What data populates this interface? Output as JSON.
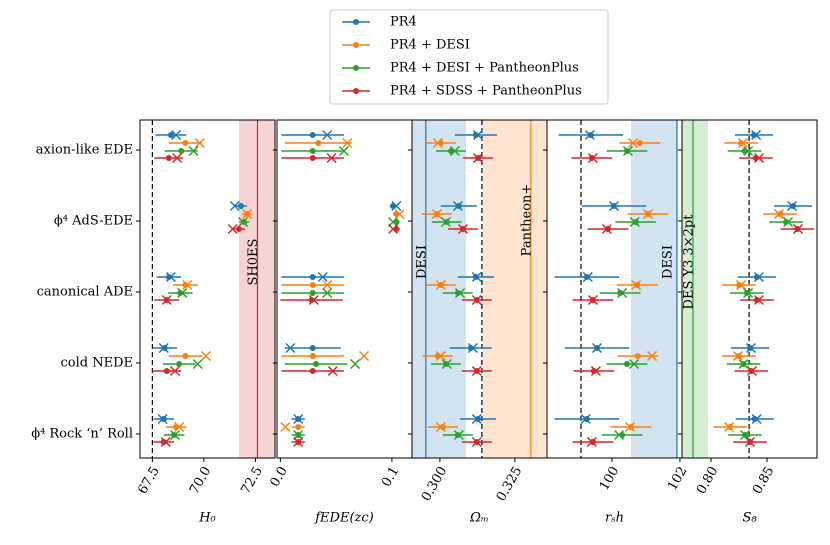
{
  "chart_data": [
    {
      "type": "errorbar",
      "xlabel": "H₀",
      "categories": [
        "axion-like EDE",
        "ϕ⁴ AdS-EDE",
        "canonical ADE",
        "cold NEDE",
        "ϕ⁴ Rock ‘n’ Roll"
      ],
      "xlim": [
        66.9,
        73.45
      ],
      "xticks": [
        67.5,
        {
          "value": 70,
          "label": "70.0"
        },
        72.5
      ],
      "reference_line": 67.5,
      "bands": [
        {
          "label": "SH0ES",
          "range": [
            71.7,
            73.5
          ],
          "line": 72.6,
          "color": "#d62728"
        }
      ],
      "series": [
        {
          "name": "PR4",
          "color": "#1f77b4",
          "values": [
            68.4,
            71.8,
            68.3,
            68.1,
            68.05
          ],
          "errors": [
            0.75,
            0.3,
            0.6,
            0.6,
            0.5
          ],
          "bestfit": [
            68.65,
            71.5,
            68.4,
            68.05,
            68.0
          ]
        },
        {
          "name": "PR4 + DESI",
          "color": "#ff7f0e",
          "values": [
            69.1,
            72.1,
            69.1,
            69.1,
            68.65
          ],
          "errors": [
            0.8,
            0.25,
            0.6,
            0.8,
            0.5
          ],
          "bestfit": [
            69.8,
            72.1,
            69.2,
            70.1,
            68.8
          ]
        },
        {
          "name": "PR4 + DESI + PantheonPlus",
          "color": "#2ca02c",
          "values": [
            68.9,
            71.95,
            68.85,
            68.8,
            68.55
          ],
          "errors": [
            0.8,
            0.25,
            0.6,
            0.8,
            0.5
          ],
          "bestfit": [
            69.5,
            71.9,
            68.95,
            69.7,
            68.6
          ]
        },
        {
          "name": "PR4 + SDSS + PantheonPlus",
          "color": "#d62728",
          "values": [
            68.3,
            71.7,
            68.2,
            68.2,
            68.05
          ],
          "errors": [
            0.7,
            0.3,
            0.6,
            0.7,
            0.5
          ],
          "bestfit": [
            68.7,
            71.4,
            68.2,
            68.6,
            68.15
          ]
        }
      ]
    },
    {
      "type": "errorbar",
      "xlabel": "fEDE(zc)",
      "xlim": [
        -0.003,
        0.118
      ],
      "xticks": [
        {
          "value": 0,
          "label": "0.0"
        },
        0.1
      ],
      "series": [
        {
          "values": [
            0.029,
            0.101,
            0.029,
            0.029,
            0.016
          ],
          "errors": [
            0.028,
            0.003,
            0.028,
            0.025,
            0.006
          ],
          "bestfit": [
            0.042,
            0.104,
            0.038,
            0.009,
            0.016
          ]
        },
        {
          "values": [
            0.034,
            0.104,
            0.029,
            0.029,
            0.016
          ],
          "errors": [
            0.03,
            0.003,
            0.028,
            0.028,
            0.006
          ],
          "bestfit": [
            0.06,
            0.107,
            0.042,
            0.075,
            0.0045
          ]
        },
        {
          "values": [
            0.029,
            0.104,
            0.029,
            0.032,
            0.016
          ],
          "errors": [
            0.028,
            0.003,
            0.028,
            0.028,
            0.006
          ],
          "bestfit": [
            0.057,
            0.101,
            0.042,
            0.067,
            0.016
          ]
        },
        {
          "values": [
            0.029,
            0.104,
            0.028,
            0.029,
            0.016
          ],
          "errors": [
            0.028,
            0.003,
            0.028,
            0.028,
            0.006
          ],
          "bestfit": [
            0.046,
            0.101,
            0.03,
            0.047,
            0.016
          ]
        }
      ]
    },
    {
      "type": "errorbar",
      "xlabel": "Ωₘ",
      "xlim": [
        0.2907,
        0.3357
      ],
      "xticks": [
        {
          "value": 0.3,
          "label": "0.300"
        },
        0.325
      ],
      "reference_line": 0.314,
      "bands": [
        {
          "label": "DESI",
          "range": [
            0.28,
            0.3087
          ],
          "line": 0.2953,
          "color": "#1f77b4"
        },
        {
          "label": "Pantheon+",
          "range": [
            0.3143,
            0.346
          ],
          "line": 0.3303,
          "color": "#ff7f0e"
        }
      ],
      "series": [
        {
          "values": [
            0.312,
            0.3063,
            0.312,
            0.3103,
            0.3127
          ],
          "errors": [
            0.007,
            0.006,
            0.006,
            0.007,
            0.006
          ],
          "bestfit": [
            0.3127,
            0.306,
            0.3123,
            0.311,
            0.3123
          ]
        },
        {
          "values": [
            0.3003,
            0.299,
            0.3003,
            0.2993,
            0.301
          ],
          "errors": [
            0.005,
            0.005,
            0.005,
            0.005,
            0.005
          ],
          "bestfit": [
            0.2993,
            0.299,
            0.3003,
            0.3003,
            0.3003
          ]
        },
        {
          "values": [
            0.3037,
            0.3023,
            0.306,
            0.302,
            0.306
          ],
          "errors": [
            0.005,
            0.005,
            0.005,
            0.005,
            0.005
          ],
          "bestfit": [
            0.305,
            0.302,
            0.3067,
            0.3023,
            0.3063
          ]
        },
        {
          "values": [
            0.3127,
            0.3077,
            0.3123,
            0.3123,
            0.3123
          ],
          "errors": [
            0.005,
            0.005,
            0.005,
            0.005,
            0.005
          ],
          "bestfit": [
            0.3127,
            0.3077,
            0.3123,
            0.3123,
            0.3123
          ]
        }
      ]
    },
    {
      "type": "errorbar",
      "xlabel": "rₛh",
      "xlim": [
        98.09,
        102.06
      ],
      "xticks": [
        100,
        102
      ],
      "reference_line": 99.09,
      "bands": [
        {
          "label": "DESI",
          "range": [
            100.56,
            101.94
          ],
          "line": 101.91,
          "color": "#1f77b4"
        }
      ],
      "series": [
        {
          "values": [
            99.38,
            100.06,
            99.26,
            99.56,
            99.26
          ],
          "errors": [
            0.95,
            0.95,
            0.95,
            0.95,
            0.95
          ],
          "bestfit": [
            99.35,
            100.06,
            99.29,
            99.56,
            99.23
          ]
        },
        {
          "values": [
            100.82,
            101.06,
            100.74,
            100.76,
            100.56
          ],
          "errors": [
            0.6,
            0.6,
            0.6,
            0.6,
            0.6
          ],
          "bestfit": [
            100.62,
            101.06,
            100.71,
            101.18,
            100.53
          ]
        },
        {
          "values": [
            100.44,
            100.7,
            100.24,
            100.44,
            100.3
          ],
          "errors": [
            0.6,
            0.6,
            0.6,
            0.6,
            0.6
          ],
          "bestfit": [
            100.47,
            100.67,
            100.3,
            100.65,
            100.21
          ]
        },
        {
          "values": [
            99.41,
            99.88,
            99.44,
            99.47,
            99.44
          ],
          "errors": [
            0.6,
            0.6,
            0.6,
            0.6,
            0.6
          ],
          "bestfit": [
            99.44,
            99.85,
            99.44,
            99.53,
            99.41
          ]
        }
      ]
    },
    {
      "type": "errorbar",
      "xlabel": "S₈",
      "xlim": [
        0.7741,
        0.8946
      ],
      "xticks": [
        {
          "value": 0.8,
          "label": "0.80"
        },
        0.85
      ],
      "reference_line": 0.834,
      "bands": [
        {
          "label": "DES Y3 3×2pt",
          "range": [
            0.77,
            0.7973
          ],
          "line": 0.7839,
          "color": "#2ca02c"
        }
      ],
      "series": [
        {
          "values": [
            0.8384,
            0.8732,
            0.841,
            0.8348,
            0.839
          ],
          "errors": [
            0.017,
            0.017,
            0.017,
            0.017,
            0.017
          ],
          "bestfit": [
            0.8402,
            0.8723,
            0.8428,
            0.8357,
            0.8408
          ]
        },
        {
          "values": [
            0.8268,
            0.8616,
            0.825,
            0.825,
            0.817
          ],
          "errors": [
            0.015,
            0.015,
            0.015,
            0.015,
            0.015
          ],
          "bestfit": [
            0.8286,
            0.8607,
            0.8268,
            0.8241,
            0.8161
          ]
        },
        {
          "values": [
            0.83,
            0.867,
            0.832,
            0.829,
            0.8304
          ],
          "errors": [
            0.015,
            0.015,
            0.015,
            0.015,
            0.015
          ],
          "bestfit": [
            0.8331,
            0.8688,
            0.8331,
            0.829,
            0.8304
          ]
        },
        {
          "values": [
            0.84,
            0.877,
            0.841,
            0.836,
            0.8348
          ],
          "errors": [
            0.015,
            0.015,
            0.015,
            0.015,
            0.015
          ],
          "bestfit": [
            0.8429,
            0.8777,
            0.8428,
            0.8366,
            0.8348
          ]
        }
      ]
    }
  ]
}
